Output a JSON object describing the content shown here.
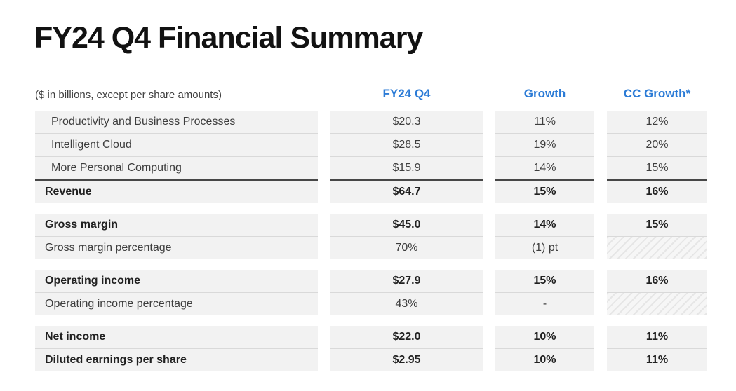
{
  "slide": {
    "title": "FY24 Q4 Financial Summary",
    "units_note": "($ in billions, except per share amounts)"
  },
  "colors": {
    "accent_blue": "#2b7bd6",
    "row_background": "#f2f2f2",
    "total_border": "#474747"
  },
  "table": {
    "column_headers": [
      "FY24 Q4",
      "Growth",
      "CC Growth*"
    ],
    "sections": [
      {
        "rows": [
          {
            "label": "Productivity and Business Processes",
            "values": [
              "$20.3",
              "11%",
              "12%"
            ]
          },
          {
            "label": "Intelligent Cloud",
            "values": [
              "$28.5",
              "19%",
              "20%"
            ]
          },
          {
            "label": "More Personal Computing",
            "values": [
              "$15.9",
              "14%",
              "15%"
            ]
          },
          {
            "label": "Revenue",
            "values": [
              "$64.7",
              "15%",
              "16%"
            ]
          }
        ]
      },
      {
        "rows": [
          {
            "label": "Gross margin",
            "values": [
              "$45.0",
              "14%",
              "15%"
            ]
          },
          {
            "label": "Gross margin percentage",
            "values": [
              "70%",
              "(1) pt",
              null
            ]
          }
        ]
      },
      {
        "rows": [
          {
            "label": "Operating income",
            "values": [
              "$27.9",
              "15%",
              "16%"
            ]
          },
          {
            "label": "Operating income percentage",
            "values": [
              "43%",
              "-",
              null
            ]
          }
        ]
      },
      {
        "rows": [
          {
            "label": "Net income",
            "values": [
              "$22.0",
              "10%",
              "11%"
            ]
          },
          {
            "label": "Diluted earnings per share",
            "values": [
              "$2.95",
              "10%",
              "11%"
            ]
          }
        ]
      }
    ]
  }
}
